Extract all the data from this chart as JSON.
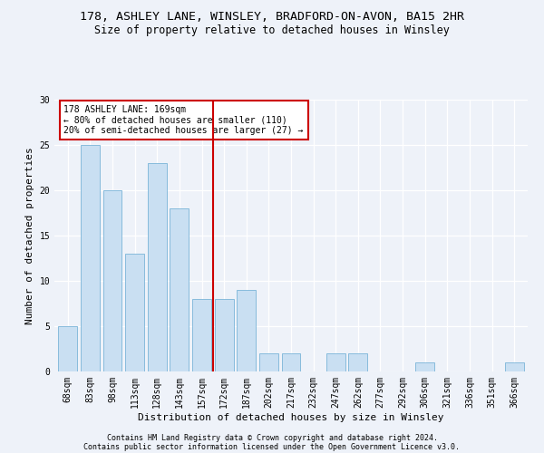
{
  "title_line1": "178, ASHLEY LANE, WINSLEY, BRADFORD-ON-AVON, BA15 2HR",
  "title_line2": "Size of property relative to detached houses in Winsley",
  "xlabel": "Distribution of detached houses by size in Winsley",
  "ylabel": "Number of detached properties",
  "categories": [
    "68sqm",
    "83sqm",
    "98sqm",
    "113sqm",
    "128sqm",
    "143sqm",
    "157sqm",
    "172sqm",
    "187sqm",
    "202sqm",
    "217sqm",
    "232sqm",
    "247sqm",
    "262sqm",
    "277sqm",
    "292sqm",
    "306sqm",
    "321sqm",
    "336sqm",
    "351sqm",
    "366sqm"
  ],
  "values": [
    5,
    25,
    20,
    13,
    23,
    18,
    8,
    8,
    9,
    2,
    2,
    0,
    2,
    2,
    0,
    0,
    1,
    0,
    0,
    0,
    1
  ],
  "bar_color": "#c9dff2",
  "bar_edge_color": "#7ab4d8",
  "vline_color": "#cc0000",
  "vline_x_index": 6.5,
  "annotation_text": "178 ASHLEY LANE: 169sqm\n← 80% of detached houses are smaller (110)\n20% of semi-detached houses are larger (27) →",
  "annotation_box_color": "#ffffff",
  "annotation_box_edge": "#cc0000",
  "ylim": [
    0,
    30
  ],
  "yticks": [
    0,
    5,
    10,
    15,
    20,
    25,
    30
  ],
  "footer_line1": "Contains HM Land Registry data © Crown copyright and database right 2024.",
  "footer_line2": "Contains public sector information licensed under the Open Government Licence v3.0.",
  "background_color": "#eef2f9",
  "grid_color": "#ffffff",
  "title_fontsize": 9.5,
  "subtitle_fontsize": 8.5,
  "axis_label_fontsize": 8,
  "tick_fontsize": 7,
  "annotation_fontsize": 7,
  "footer_fontsize": 6
}
